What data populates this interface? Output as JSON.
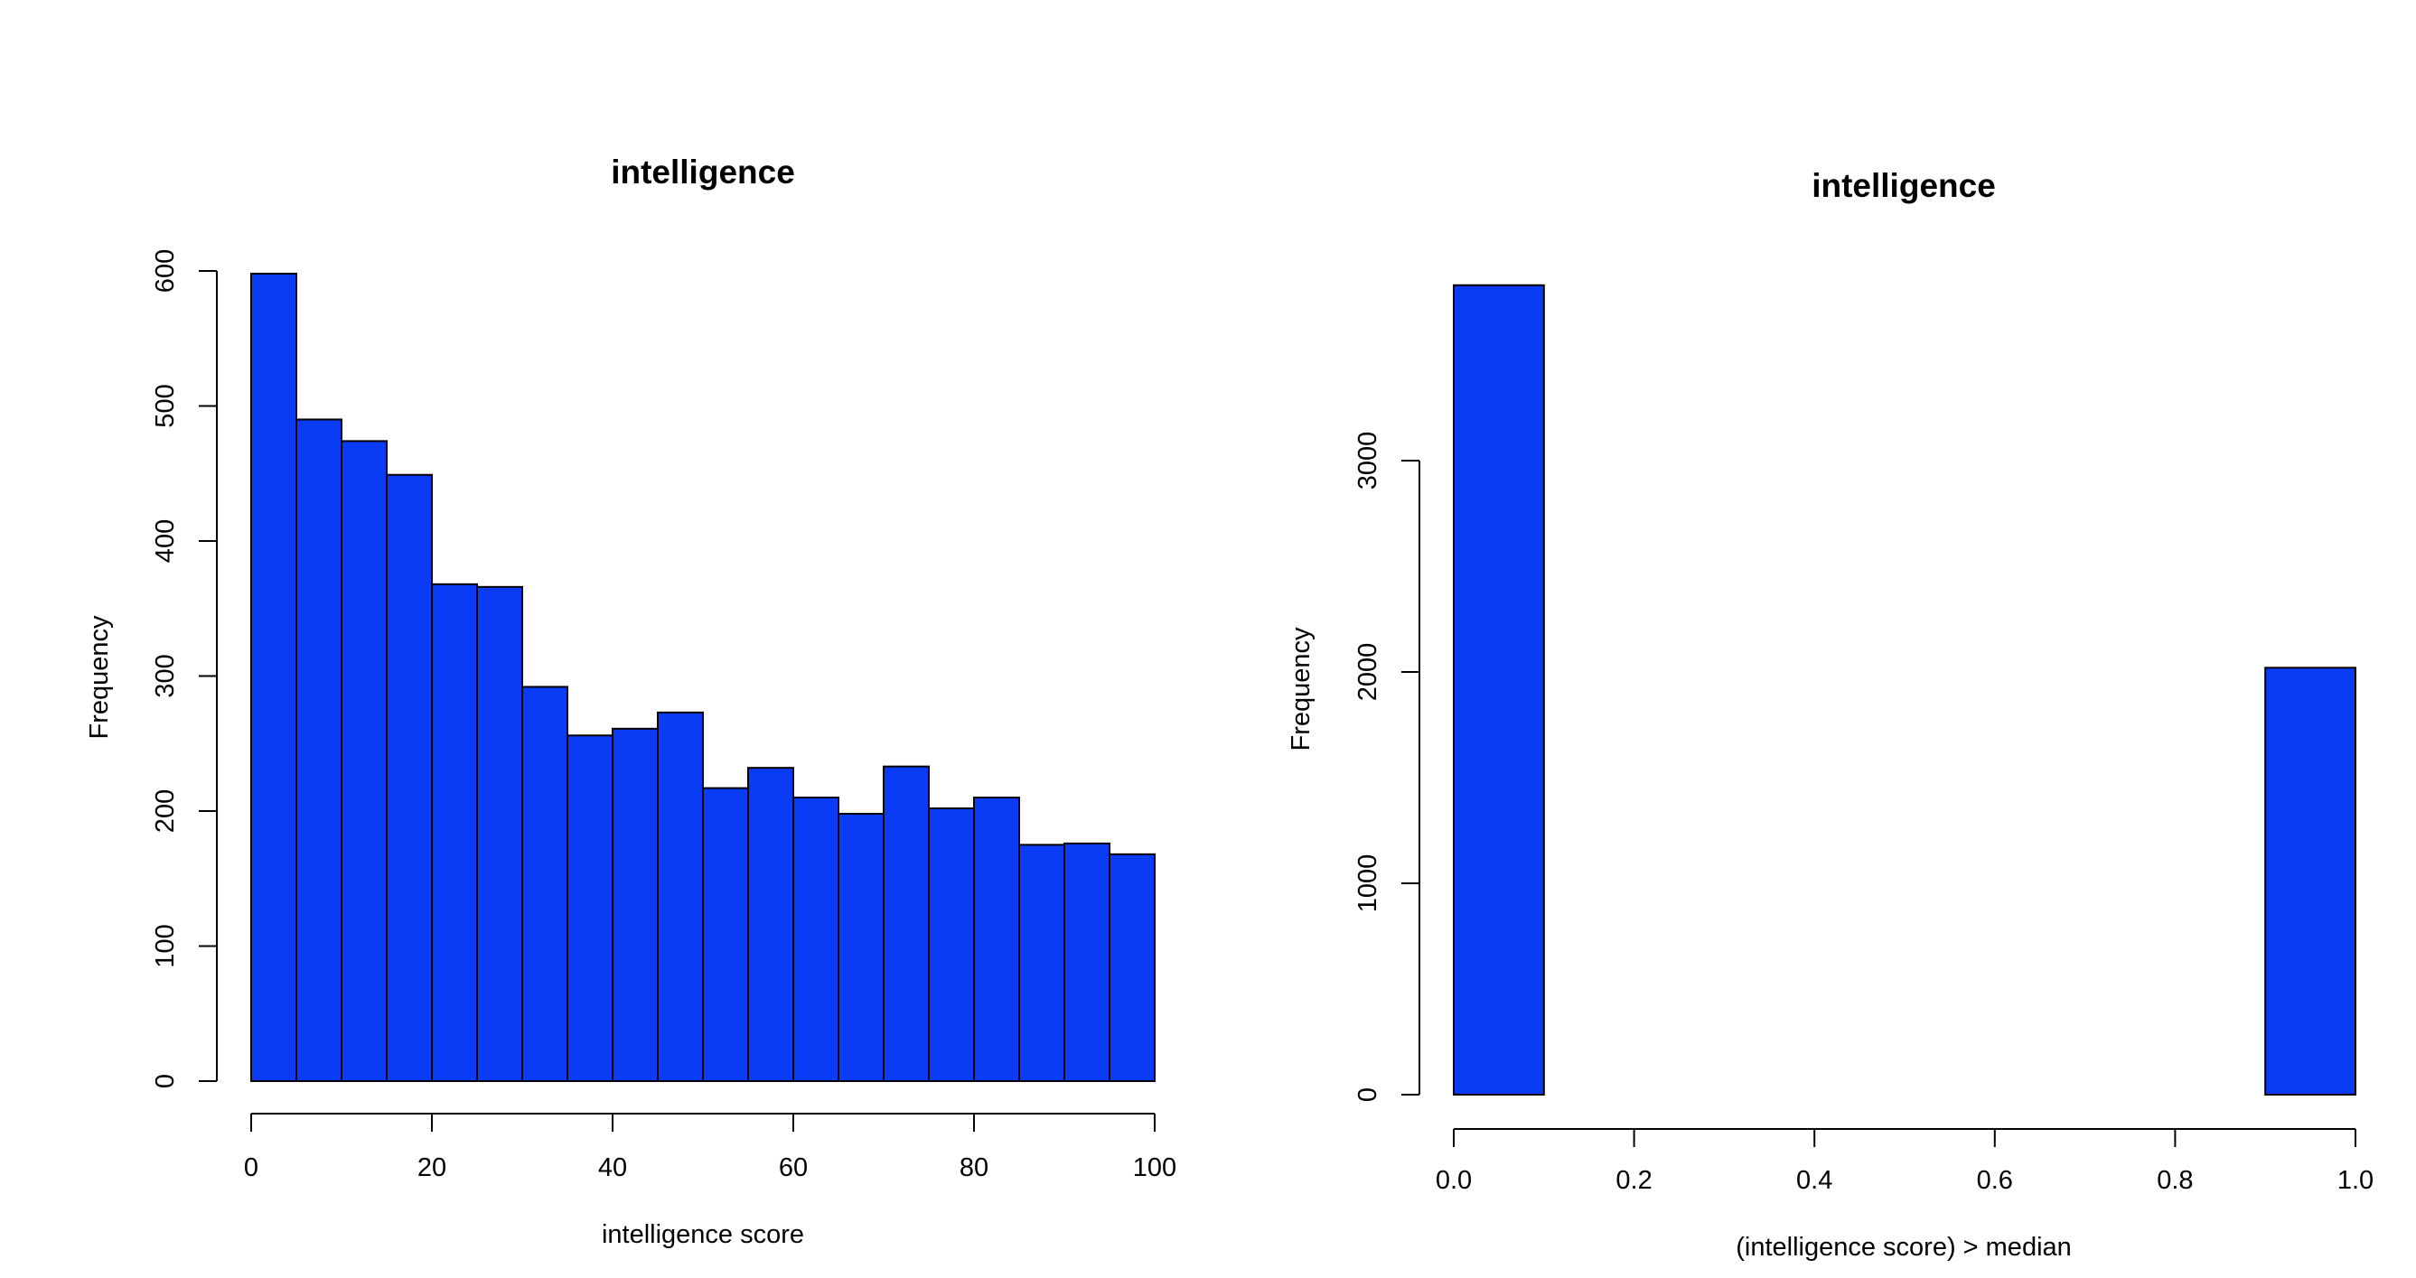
{
  "colors": {
    "bar_fill": "#0a3cf5",
    "bar_stroke": "#000000",
    "background": "#ffffff"
  },
  "chart_data": [
    {
      "type": "bar",
      "title": "intelligence",
      "xlabel": "intelligence score",
      "ylabel": "Frequency",
      "xlim": [
        0,
        100
      ],
      "ylim": [
        0,
        600
      ],
      "x_ticks": [
        "0",
        "20",
        "40",
        "60",
        "80",
        "100"
      ],
      "y_ticks": [
        "0",
        "100",
        "200",
        "300",
        "400",
        "500",
        "600"
      ],
      "bin_edges": [
        0,
        5,
        10,
        15,
        20,
        25,
        30,
        35,
        40,
        45,
        50,
        55,
        60,
        65,
        70,
        75,
        80,
        85,
        90,
        95,
        100
      ],
      "values": [
        598,
        490,
        474,
        449,
        368,
        366,
        292,
        256,
        261,
        273,
        217,
        232,
        210,
        198,
        233,
        202,
        210,
        175,
        176,
        168
      ],
      "grid": false
    },
    {
      "type": "bar",
      "title": "intelligence",
      "xlabel": "(intelligence score) > median",
      "ylabel": "Frequency",
      "xlim": [
        0,
        1
      ],
      "ylim": [
        0,
        3000
      ],
      "x_ticks": [
        "0.0",
        "0.2",
        "0.4",
        "0.6",
        "0.8",
        "1.0"
      ],
      "y_ticks": [
        "0",
        "1000",
        "2000",
        "3000"
      ],
      "bin_edges": [
        0,
        0.1,
        0.2,
        0.3,
        0.4,
        0.5,
        0.6,
        0.7,
        0.8,
        0.9,
        1.0
      ],
      "values": [
        3830,
        0,
        0,
        0,
        0,
        0,
        0,
        0,
        0,
        2020
      ],
      "grid": false
    }
  ]
}
